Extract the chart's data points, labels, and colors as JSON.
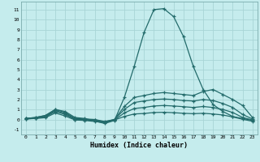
{
  "xlabel": "Humidex (Indice chaleur)",
  "xlim": [
    -0.5,
    23.5
  ],
  "ylim": [
    -1.5,
    11.8
  ],
  "yticks": [
    -1,
    0,
    1,
    2,
    3,
    4,
    5,
    6,
    7,
    8,
    9,
    10,
    11
  ],
  "xticks": [
    0,
    1,
    2,
    3,
    4,
    5,
    6,
    7,
    8,
    9,
    10,
    11,
    12,
    13,
    14,
    15,
    16,
    17,
    18,
    19,
    20,
    21,
    22,
    23
  ],
  "background_color": "#c5eced",
  "grid_color": "#a8d5d6",
  "line_color": "#236b6b",
  "lines": [
    {
      "x": [
        0,
        1,
        2,
        3,
        4,
        5,
        6,
        7,
        8,
        9,
        10,
        11,
        12,
        13,
        14,
        15,
        16,
        17,
        18,
        19,
        20,
        21,
        22,
        23
      ],
      "y": [
        0.1,
        0.2,
        0.4,
        1.0,
        0.8,
        0.2,
        0.1,
        -0.15,
        -0.4,
        -0.1,
        2.2,
        5.3,
        8.7,
        11.0,
        11.1,
        10.3,
        8.3,
        5.3,
        3.0,
        1.5,
        0.8,
        0.3,
        0.1,
        -0.1
      ]
    },
    {
      "x": [
        0,
        1,
        2,
        3,
        4,
        5,
        6,
        7,
        8,
        9,
        10,
        11,
        12,
        13,
        14,
        15,
        16,
        17,
        18,
        19,
        20,
        21,
        22,
        23
      ],
      "y": [
        0.1,
        0.2,
        0.4,
        1.0,
        0.7,
        0.1,
        0.05,
        0.0,
        -0.2,
        0.0,
        1.3,
        2.2,
        2.4,
        2.6,
        2.7,
        2.6,
        2.5,
        2.4,
        2.8,
        3.0,
        2.5,
        2.0,
        1.4,
        0.2
      ]
    },
    {
      "x": [
        0,
        1,
        2,
        3,
        4,
        5,
        6,
        7,
        8,
        9,
        10,
        11,
        12,
        13,
        14,
        15,
        16,
        17,
        18,
        19,
        20,
        21,
        22,
        23
      ],
      "y": [
        0.1,
        0.15,
        0.3,
        0.9,
        0.6,
        0.05,
        0.0,
        -0.05,
        -0.25,
        0.0,
        1.0,
        1.7,
        1.85,
        2.0,
        2.05,
        2.0,
        1.9,
        1.85,
        2.0,
        1.9,
        1.6,
        1.2,
        0.5,
        0.05
      ]
    },
    {
      "x": [
        0,
        1,
        2,
        3,
        4,
        5,
        6,
        7,
        8,
        9,
        10,
        11,
        12,
        13,
        14,
        15,
        16,
        17,
        18,
        19,
        20,
        21,
        22,
        23
      ],
      "y": [
        0.05,
        0.12,
        0.25,
        0.8,
        0.5,
        0.0,
        -0.05,
        -0.1,
        -0.28,
        -0.05,
        0.65,
        1.1,
        1.2,
        1.35,
        1.4,
        1.35,
        1.28,
        1.2,
        1.3,
        1.2,
        1.0,
        0.7,
        0.2,
        -0.05
      ]
    },
    {
      "x": [
        0,
        1,
        2,
        3,
        4,
        5,
        6,
        7,
        8,
        9,
        10,
        11,
        12,
        13,
        14,
        15,
        16,
        17,
        18,
        19,
        20,
        21,
        22,
        23
      ],
      "y": [
        0.05,
        0.1,
        0.18,
        0.65,
        0.35,
        -0.05,
        -0.1,
        -0.2,
        -0.32,
        -0.05,
        0.3,
        0.55,
        0.6,
        0.7,
        0.72,
        0.68,
        0.62,
        0.58,
        0.62,
        0.55,
        0.45,
        0.25,
        0.02,
        -0.18
      ]
    }
  ]
}
